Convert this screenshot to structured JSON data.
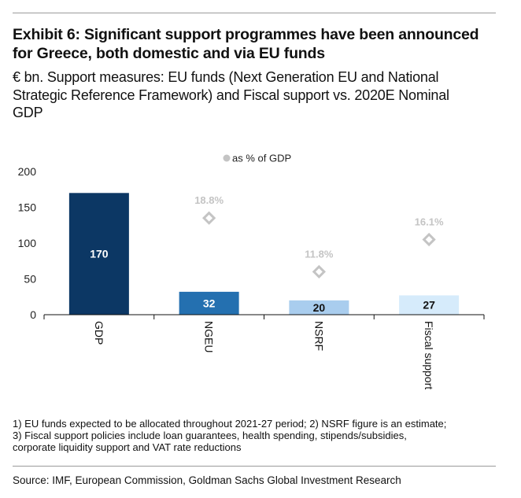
{
  "header": {
    "title_line1": "Exhibit 6: Significant support programmes have been announced",
    "title_line2": "for Greece, both domestic and via EU funds",
    "subtitle_line1": "€ bn. Support measures: EU funds (Next Generation EU and National",
    "subtitle_line2": "Strategic Reference Framework) and Fiscal support vs. 2020E Nominal",
    "subtitle_line3": "GDP"
  },
  "chart_data": {
    "type": "bar",
    "categories": [
      "GDP",
      "NGEU",
      "NSRF",
      "Fiscal support"
    ],
    "values": [
      170,
      32,
      20,
      27
    ],
    "value_labels": [
      "170",
      "32",
      "20",
      "27"
    ],
    "bar_colors": [
      "#0c3764",
      "#2470b0",
      "#a9cdee",
      "#d6ebfb"
    ],
    "value_label_colors": [
      "#ffffff",
      "#ffffff",
      "#111111",
      "#111111"
    ],
    "secondary_series": {
      "name": "as % of GDP",
      "marker": "diamond",
      "color": "#c4c4c4",
      "points": [
        {
          "category": "NGEU",
          "value": 135,
          "label": "18.8%"
        },
        {
          "category": "NSRF",
          "value": 60,
          "label": "11.8%"
        },
        {
          "category": "Fiscal support",
          "value": 105,
          "label": "16.1%"
        }
      ]
    },
    "title": "",
    "xlabel": "",
    "ylabel": "",
    "ylim": [
      0,
      200
    ],
    "yticks": [
      0,
      50,
      100,
      150,
      200
    ],
    "legend_position": "top-center",
    "grid": false
  },
  "footnotes": {
    "line1": "1) EU funds expected to be allocated throughout 2021-27 period; 2) NSRF figure is an estimate;",
    "line2": "3) Fiscal support policies include loan guarantees, health spending, stipends/subsidies,",
    "line3": "corporate liquidity support and VAT rate reductions"
  },
  "source": "Source: IMF, European Commission, Goldman Sachs Global Investment Research"
}
